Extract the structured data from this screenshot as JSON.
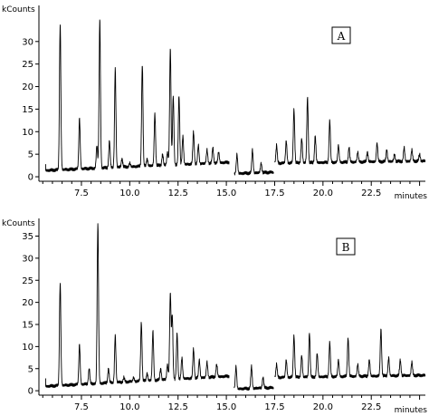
{
  "chart_data": [
    {
      "type": "line",
      "panel_label": "A",
      "ylabel": "kCounts",
      "xlabel": "minutes",
      "xlim": [
        5.3,
        25.3
      ],
      "ylim": [
        -1,
        38
      ],
      "x_ticks": [
        7.5,
        10.0,
        12.5,
        15.0,
        17.5,
        20.0,
        22.5
      ],
      "x_tick_labels": [
        "7.5",
        "10.0",
        "12.5",
        "15.0",
        "17.5",
        "20.0",
        "22.5"
      ],
      "y_ticks": [
        0,
        5,
        10,
        15,
        20,
        25,
        30
      ],
      "y_tick_labels": [
        "0",
        "5",
        "10",
        "15",
        "20",
        "25",
        "30"
      ],
      "segments": [
        {
          "start": 5.65,
          "end": 15.15,
          "base_start": 1.4,
          "base_end": 3.2
        },
        {
          "start": 15.4,
          "end": 17.45,
          "base_start": 0.7,
          "base_end": 1.0
        },
        {
          "start": 17.5,
          "end": 25.3,
          "base_start": 3.0,
          "base_end": 3.5
        }
      ],
      "peaks": [
        {
          "x": 6.4,
          "y": 34.0
        },
        {
          "x": 7.4,
          "y": 13.0
        },
        {
          "x": 8.3,
          "y": 7.0
        },
        {
          "x": 8.45,
          "y": 35.0
        },
        {
          "x": 8.95,
          "y": 8.0
        },
        {
          "x": 9.25,
          "y": 24.0
        },
        {
          "x": 9.6,
          "y": 4.0
        },
        {
          "x": 10.0,
          "y": 3.0
        },
        {
          "x": 10.65,
          "y": 25.0
        },
        {
          "x": 10.9,
          "y": 4.0
        },
        {
          "x": 11.3,
          "y": 14.0
        },
        {
          "x": 11.7,
          "y": 5.0
        },
        {
          "x": 11.95,
          "y": 5.5
        },
        {
          "x": 12.1,
          "y": 28.5
        },
        {
          "x": 12.25,
          "y": 18.0
        },
        {
          "x": 12.55,
          "y": 18.0
        },
        {
          "x": 12.75,
          "y": 9.0
        },
        {
          "x": 13.3,
          "y": 10.0
        },
        {
          "x": 13.55,
          "y": 7.0
        },
        {
          "x": 14.0,
          "y": 6.0
        },
        {
          "x": 14.3,
          "y": 6.5
        },
        {
          "x": 14.6,
          "y": 5.5
        },
        {
          "x": 15.55,
          "y": 5.0
        },
        {
          "x": 16.35,
          "y": 6.0
        },
        {
          "x": 16.8,
          "y": 3.0
        },
        {
          "x": 17.6,
          "y": 7.0
        },
        {
          "x": 18.1,
          "y": 8.0
        },
        {
          "x": 18.5,
          "y": 15.0
        },
        {
          "x": 18.9,
          "y": 8.5
        },
        {
          "x": 19.2,
          "y": 17.5
        },
        {
          "x": 19.6,
          "y": 9.0
        },
        {
          "x": 20.35,
          "y": 12.5
        },
        {
          "x": 20.8,
          "y": 7.0
        },
        {
          "x": 21.35,
          "y": 6.5
        },
        {
          "x": 21.8,
          "y": 5.5
        },
        {
          "x": 22.3,
          "y": 5.5
        },
        {
          "x": 22.8,
          "y": 7.5
        },
        {
          "x": 23.3,
          "y": 6.0
        },
        {
          "x": 23.7,
          "y": 5.0
        },
        {
          "x": 24.2,
          "y": 6.5
        },
        {
          "x": 24.6,
          "y": 6.0
        },
        {
          "x": 25.0,
          "y": 5.0
        }
      ]
    },
    {
      "type": "line",
      "panel_label": "B",
      "ylabel": "kCounts",
      "xlabel": "minutes",
      "xlim": [
        5.3,
        25.3
      ],
      "ylim": [
        -1,
        39
      ],
      "x_ticks": [
        7.5,
        10.0,
        12.5,
        15.0,
        17.5,
        20.0,
        22.5
      ],
      "x_tick_labels": [
        "7.5",
        "10.0",
        "12.5",
        "15.0",
        "17.5",
        "20.0",
        "22.5"
      ],
      "y_ticks": [
        0,
        5,
        10,
        15,
        20,
        25,
        30,
        35
      ],
      "y_tick_labels": [
        "0",
        "5",
        "10",
        "15",
        "20",
        "25",
        "30",
        "35"
      ],
      "segments": [
        {
          "start": 5.65,
          "end": 15.15,
          "base_start": 1.0,
          "base_end": 3.3
        },
        {
          "start": 15.4,
          "end": 17.45,
          "base_start": 0.4,
          "base_end": 0.7
        },
        {
          "start": 17.5,
          "end": 25.3,
          "base_start": 3.0,
          "base_end": 3.5
        }
      ],
      "peaks": [
        {
          "x": 6.4,
          "y": 24.5
        },
        {
          "x": 7.4,
          "y": 10.5
        },
        {
          "x": 7.9,
          "y": 5.0
        },
        {
          "x": 8.35,
          "y": 38.0
        },
        {
          "x": 8.9,
          "y": 5.0
        },
        {
          "x": 9.25,
          "y": 12.5
        },
        {
          "x": 9.7,
          "y": 3.0
        },
        {
          "x": 10.2,
          "y": 3.0
        },
        {
          "x": 10.6,
          "y": 15.5
        },
        {
          "x": 10.9,
          "y": 4.0
        },
        {
          "x": 11.2,
          "y": 13.5
        },
        {
          "x": 11.6,
          "y": 5.0
        },
        {
          "x": 11.95,
          "y": 6.0
        },
        {
          "x": 12.1,
          "y": 22.0
        },
        {
          "x": 12.2,
          "y": 17.0
        },
        {
          "x": 12.45,
          "y": 13.0
        },
        {
          "x": 12.7,
          "y": 7.5
        },
        {
          "x": 13.3,
          "y": 9.5
        },
        {
          "x": 13.6,
          "y": 7.0
        },
        {
          "x": 14.0,
          "y": 6.5
        },
        {
          "x": 14.5,
          "y": 6.0
        },
        {
          "x": 15.5,
          "y": 5.5
        },
        {
          "x": 16.3,
          "y": 5.5
        },
        {
          "x": 16.9,
          "y": 3.0
        },
        {
          "x": 17.6,
          "y": 6.0
        },
        {
          "x": 18.1,
          "y": 7.0
        },
        {
          "x": 18.5,
          "y": 12.5
        },
        {
          "x": 18.9,
          "y": 8.0
        },
        {
          "x": 19.3,
          "y": 13.0
        },
        {
          "x": 19.7,
          "y": 8.5
        },
        {
          "x": 20.35,
          "y": 11.0
        },
        {
          "x": 20.8,
          "y": 7.0
        },
        {
          "x": 21.3,
          "y": 12.0
        },
        {
          "x": 21.8,
          "y": 6.0
        },
        {
          "x": 22.4,
          "y": 7.0
        },
        {
          "x": 23.0,
          "y": 14.0
        },
        {
          "x": 23.4,
          "y": 7.5
        },
        {
          "x": 24.0,
          "y": 7.0
        },
        {
          "x": 24.6,
          "y": 6.5
        }
      ]
    }
  ]
}
